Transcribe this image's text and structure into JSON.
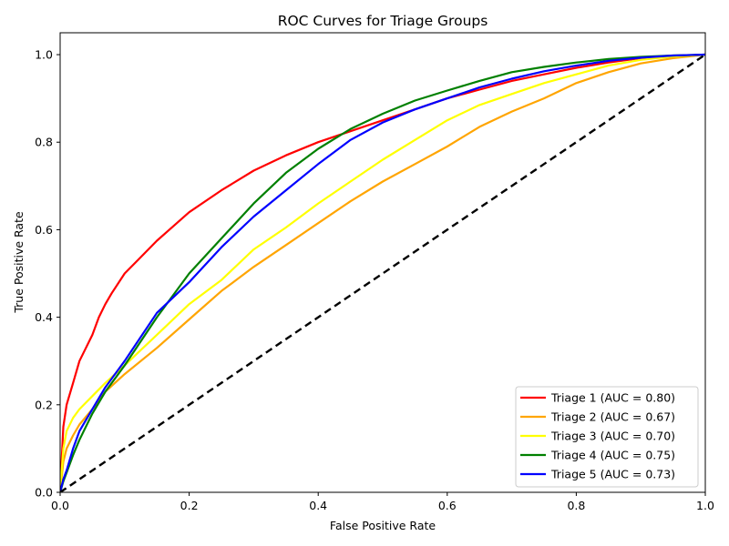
{
  "chart_data": {
    "type": "line",
    "title": "ROC Curves for Triage Groups",
    "xlabel": "False Positive Rate",
    "ylabel": "True Positive Rate",
    "xlim": [
      0.0,
      1.0
    ],
    "ylim": [
      0.0,
      1.05
    ],
    "xticks": [
      "0.0",
      "0.2",
      "0.4",
      "0.6",
      "0.8",
      "1.0"
    ],
    "yticks": [
      "0.0",
      "0.2",
      "0.4",
      "0.6",
      "0.8",
      "1.0"
    ],
    "grid": false,
    "legend_position": "lower-right",
    "reference_line": {
      "x": [
        0,
        1
      ],
      "y": [
        0,
        1
      ],
      "color": "#000000",
      "style": "dashed"
    },
    "series": [
      {
        "name": "Triage 1 (AUC = 0.80)",
        "color": "#ff0000",
        "x": [
          0,
          0.005,
          0.01,
          0.02,
          0.03,
          0.04,
          0.05,
          0.06,
          0.07,
          0.08,
          0.1,
          0.12,
          0.15,
          0.2,
          0.25,
          0.3,
          0.35,
          0.4,
          0.45,
          0.5,
          0.55,
          0.6,
          0.65,
          0.7,
          0.75,
          0.8,
          0.85,
          0.9,
          0.95,
          1.0
        ],
        "y": [
          0,
          0.15,
          0.2,
          0.25,
          0.3,
          0.33,
          0.36,
          0.4,
          0.43,
          0.455,
          0.5,
          0.53,
          0.575,
          0.64,
          0.69,
          0.735,
          0.77,
          0.8,
          0.825,
          0.85,
          0.875,
          0.9,
          0.92,
          0.94,
          0.955,
          0.97,
          0.982,
          0.992,
          0.997,
          1.0
        ]
      },
      {
        "name": "Triage 2 (AUC = 0.67)",
        "color": "#ffa500",
        "x": [
          0,
          0.005,
          0.01,
          0.02,
          0.03,
          0.05,
          0.07,
          0.1,
          0.15,
          0.2,
          0.25,
          0.3,
          0.35,
          0.4,
          0.45,
          0.5,
          0.55,
          0.6,
          0.65,
          0.7,
          0.75,
          0.8,
          0.85,
          0.9,
          0.95,
          1.0
        ],
        "y": [
          0,
          0.07,
          0.1,
          0.13,
          0.155,
          0.19,
          0.23,
          0.27,
          0.33,
          0.395,
          0.46,
          0.515,
          0.565,
          0.615,
          0.665,
          0.71,
          0.75,
          0.79,
          0.835,
          0.87,
          0.9,
          0.935,
          0.96,
          0.98,
          0.992,
          1.0
        ]
      },
      {
        "name": "Triage 3 (AUC = 0.70)",
        "color": "#ffff00",
        "x": [
          0,
          0.005,
          0.01,
          0.02,
          0.03,
          0.05,
          0.07,
          0.1,
          0.15,
          0.2,
          0.25,
          0.3,
          0.35,
          0.4,
          0.45,
          0.5,
          0.55,
          0.6,
          0.65,
          0.7,
          0.75,
          0.8,
          0.85,
          0.9,
          0.95,
          1.0
        ],
        "y": [
          0,
          0.1,
          0.14,
          0.17,
          0.19,
          0.22,
          0.25,
          0.29,
          0.36,
          0.43,
          0.485,
          0.555,
          0.605,
          0.66,
          0.71,
          0.76,
          0.805,
          0.85,
          0.885,
          0.91,
          0.935,
          0.955,
          0.975,
          0.988,
          0.996,
          1.0
        ]
      },
      {
        "name": "Triage 4 (AUC = 0.75)",
        "color": "#008000",
        "x": [
          0,
          0.005,
          0.01,
          0.02,
          0.03,
          0.05,
          0.07,
          0.1,
          0.15,
          0.2,
          0.25,
          0.3,
          0.35,
          0.4,
          0.45,
          0.5,
          0.55,
          0.6,
          0.65,
          0.7,
          0.75,
          0.8,
          0.85,
          0.9,
          0.95,
          1.0
        ],
        "y": [
          0,
          0.025,
          0.045,
          0.085,
          0.12,
          0.18,
          0.23,
          0.29,
          0.4,
          0.5,
          0.58,
          0.66,
          0.73,
          0.785,
          0.83,
          0.865,
          0.895,
          0.918,
          0.94,
          0.96,
          0.972,
          0.982,
          0.99,
          0.995,
          0.998,
          1.0
        ]
      },
      {
        "name": "Triage 5 (AUC = 0.73)",
        "color": "#0000ff",
        "x": [
          0,
          0.005,
          0.01,
          0.02,
          0.03,
          0.05,
          0.07,
          0.1,
          0.15,
          0.2,
          0.25,
          0.3,
          0.35,
          0.4,
          0.45,
          0.5,
          0.55,
          0.6,
          0.65,
          0.7,
          0.75,
          0.8,
          0.85,
          0.9,
          0.95,
          1.0
        ],
        "y": [
          0,
          0.03,
          0.05,
          0.1,
          0.14,
          0.19,
          0.24,
          0.3,
          0.41,
          0.48,
          0.56,
          0.63,
          0.69,
          0.75,
          0.805,
          0.845,
          0.875,
          0.9,
          0.925,
          0.945,
          0.962,
          0.975,
          0.986,
          0.993,
          0.998,
          1.0
        ]
      }
    ]
  }
}
